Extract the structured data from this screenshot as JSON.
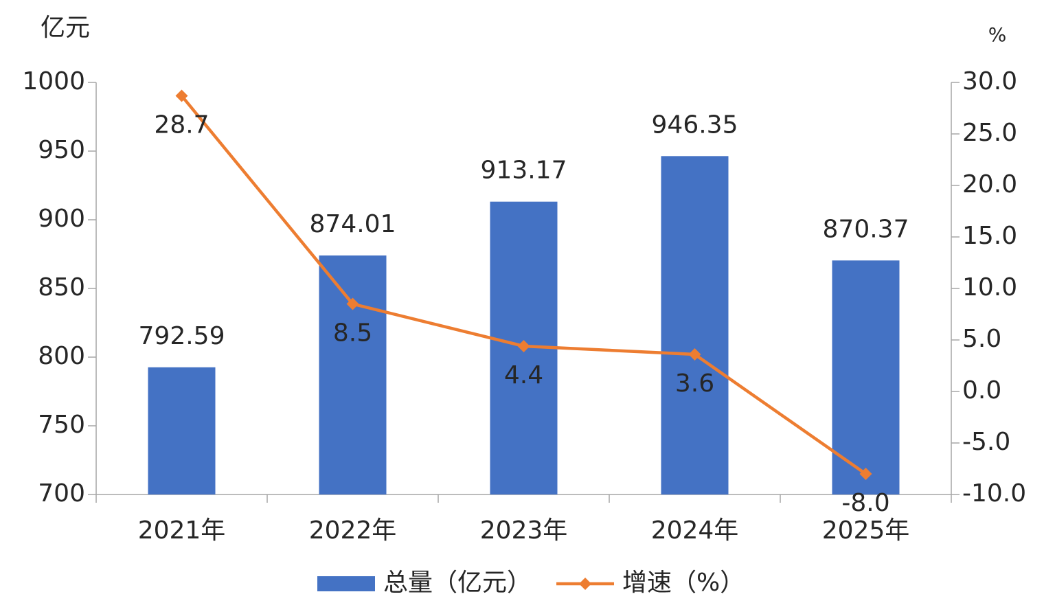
{
  "chart_data": {
    "type": "combo",
    "y_unit": "亿元",
    "y2_unit": "%",
    "categories": [
      "2021年",
      "2022年",
      "2023年",
      "2024年",
      "2025年"
    ],
    "series": [
      {
        "name": "总量（亿元）",
        "type": "bar",
        "color": "#4472c4",
        "values": [
          792.59,
          874.01,
          913.17,
          946.35,
          870.37
        ]
      },
      {
        "name": "增速（%）",
        "type": "line",
        "axis": "y2",
        "color": "#ed7d31",
        "values": [
          28.7,
          8.5,
          4.4,
          3.6,
          -8.0
        ],
        "value_labels": [
          "28.7",
          "8.5",
          "4.4",
          "3.6",
          "-8.0"
        ]
      }
    ],
    "ylim": [
      700,
      1000
    ],
    "yticks": [
      700,
      750,
      800,
      850,
      900,
      950,
      1000
    ],
    "y2lim": [
      -10,
      30
    ],
    "y2ticks": [
      {
        "value": -10,
        "label": "-10.0"
      },
      {
        "value": -5,
        "label": "-5.0"
      },
      {
        "value": 0,
        "label": "0.0"
      },
      {
        "value": 5,
        "label": "5.0"
      },
      {
        "value": 10,
        "label": "10.0"
      },
      {
        "value": 15,
        "label": "15.0"
      },
      {
        "value": 20,
        "label": "20.0"
      },
      {
        "value": 25,
        "label": "25.0"
      },
      {
        "value": 30,
        "label": "30.0"
      }
    ],
    "legend": "bottom"
  }
}
